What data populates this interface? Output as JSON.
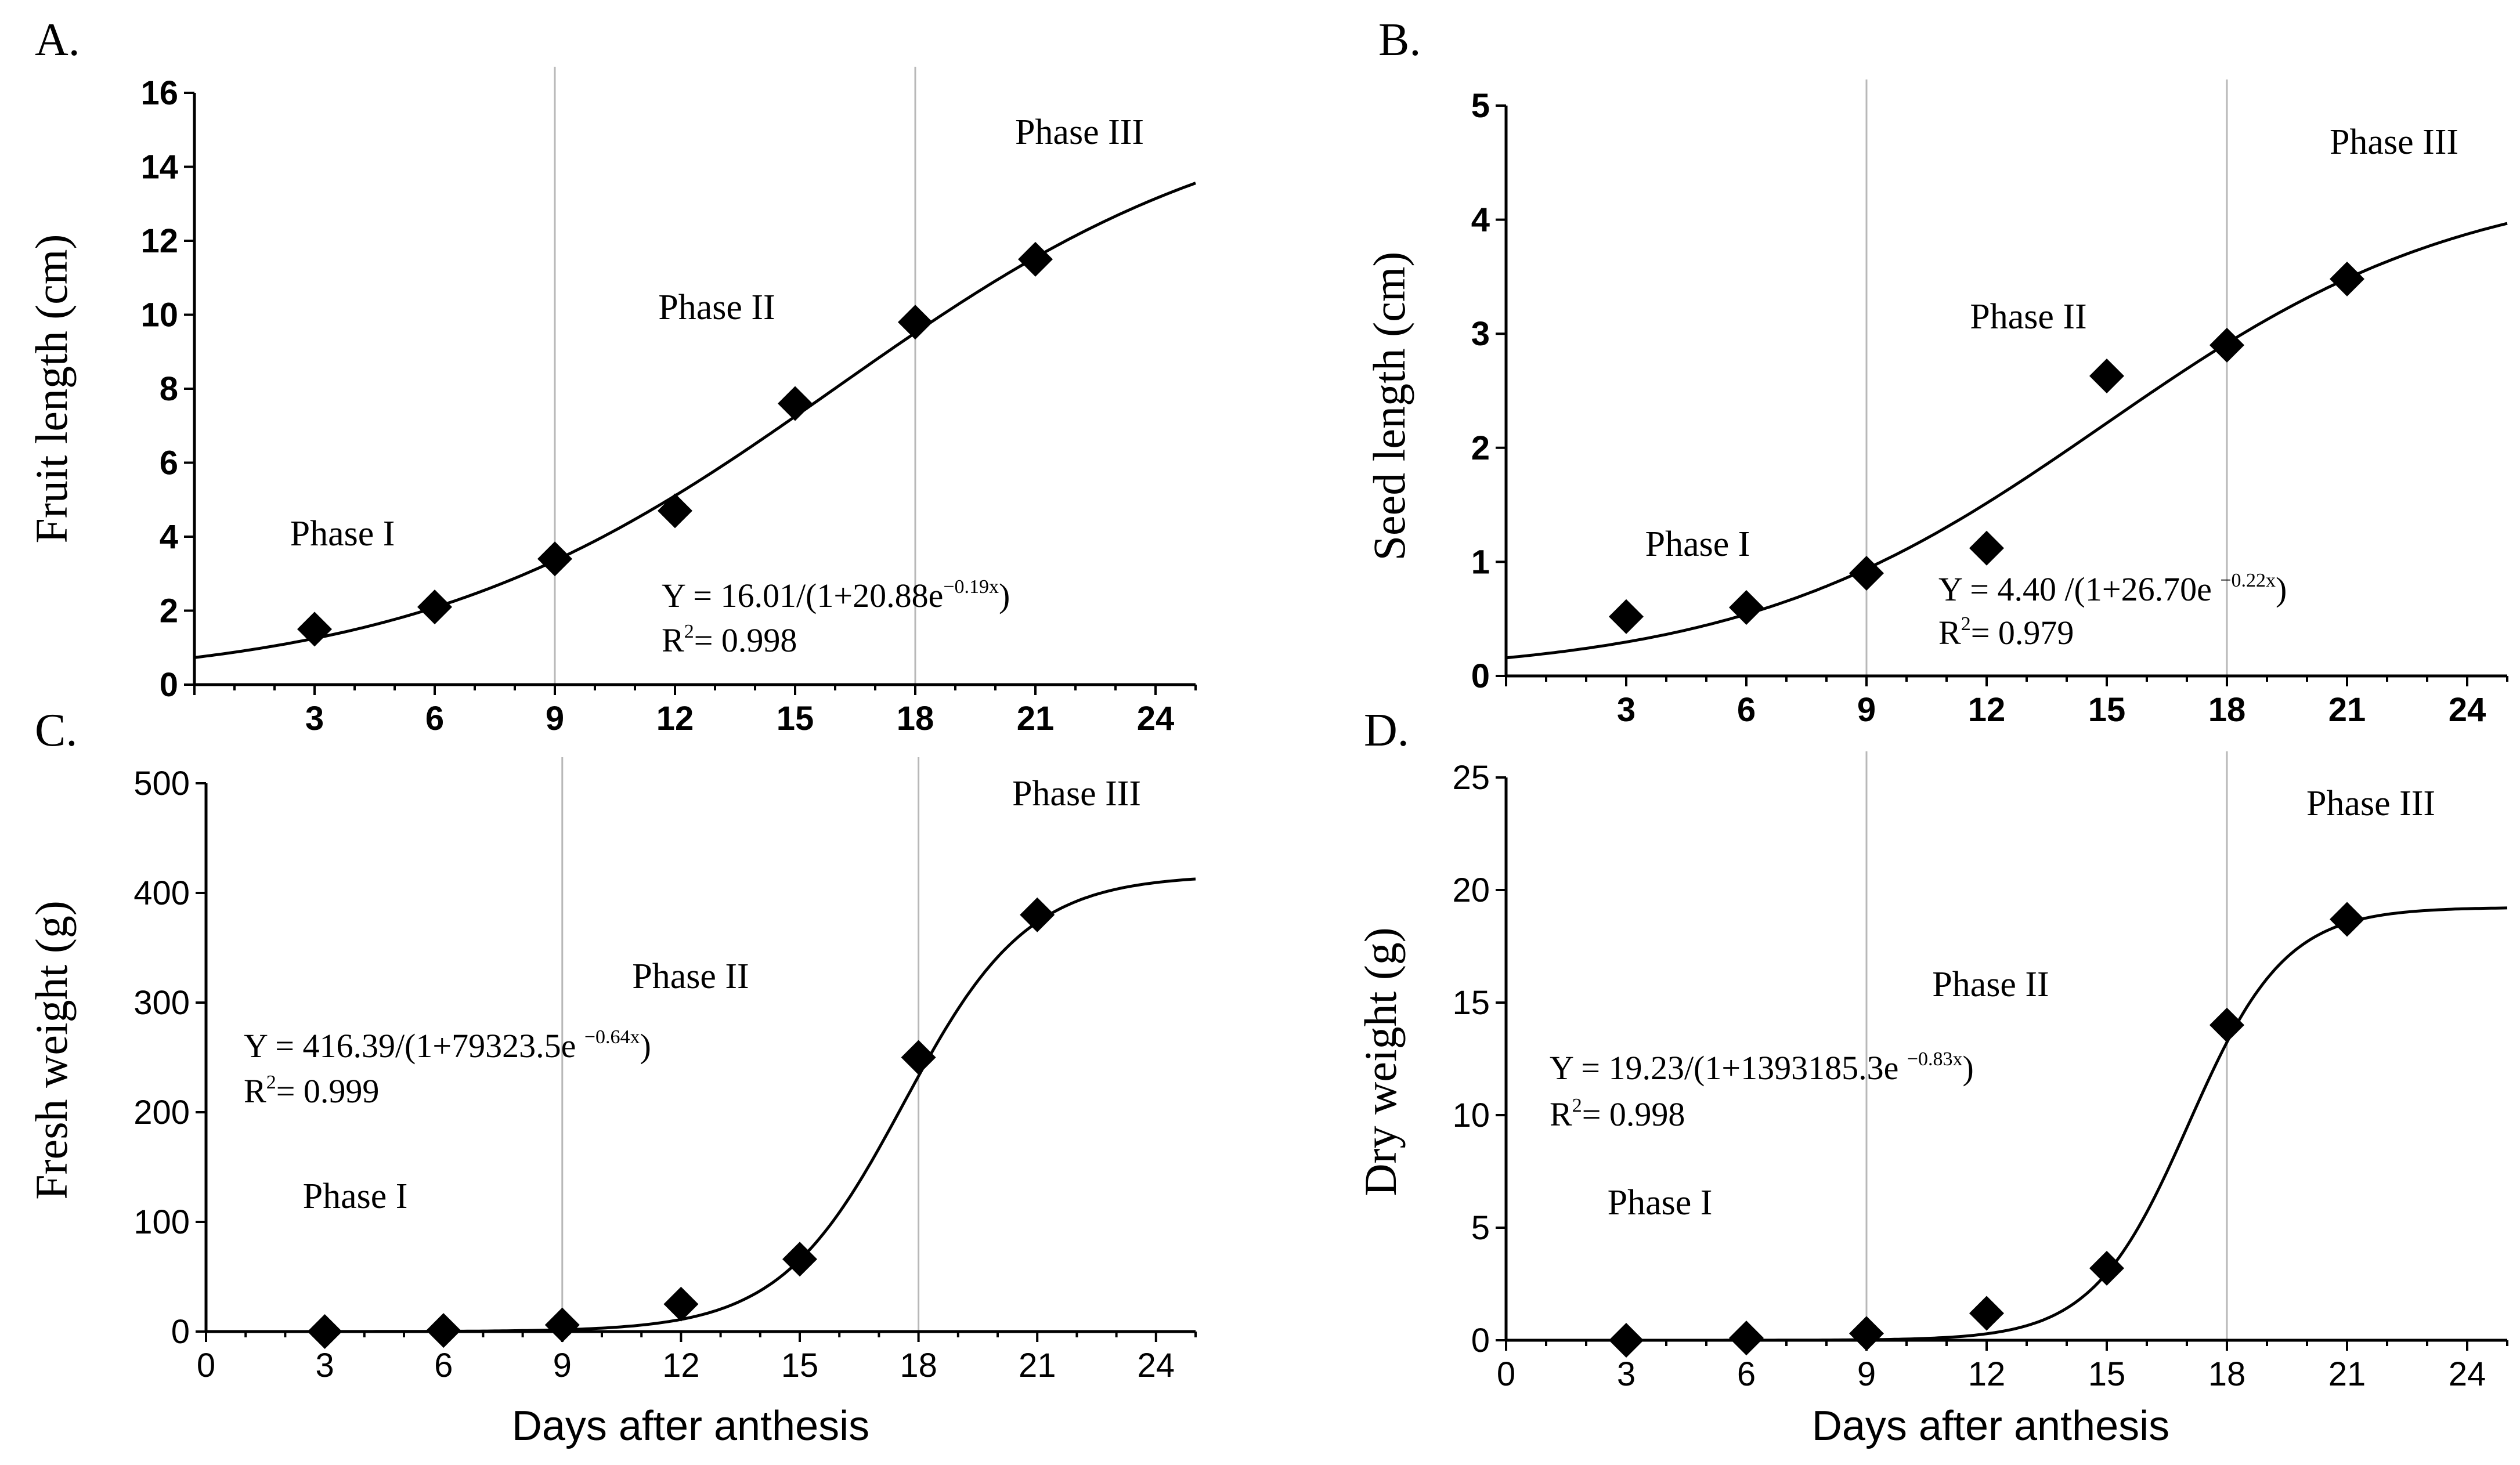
{
  "figure": {
    "x_label": "Days after anthesis",
    "phase_labels": [
      "Phase I",
      "Phase II",
      "Phase III"
    ]
  },
  "chart_data": [
    {
      "panel": "A.",
      "type": "scatter",
      "ylabel": "Fruit length (cm)",
      "xlabel": "",
      "xlim": [
        0,
        25
      ],
      "ylim": [
        0,
        16
      ],
      "yticks": [
        0,
        2,
        4,
        6,
        8,
        10,
        12,
        14,
        16
      ],
      "xticks": [
        3,
        6,
        9,
        12,
        15,
        18,
        21,
        24
      ],
      "phase_boundaries_days": [
        9,
        18
      ],
      "x": [
        3,
        6,
        9,
        12,
        15,
        18,
        21
      ],
      "values": [
        1.5,
        2.1,
        3.4,
        4.7,
        7.6,
        9.8,
        11.5
      ],
      "fit": {
        "a": 16.01,
        "b": 20.88,
        "k": 0.19
      },
      "equation": {
        "prefix": "Y = 16.01/(1+20.88e",
        "exponent": "−0.19x",
        "suffix": ")"
      },
      "r2": {
        "prefix": "R",
        "sup": "2",
        "suffix": "= 0.998"
      }
    },
    {
      "panel": "B.",
      "type": "scatter",
      "ylabel": "Seed length (cm)",
      "xlabel": "",
      "xlim": [
        0,
        25
      ],
      "ylim": [
        0,
        5
      ],
      "yticks": [
        0,
        1,
        2,
        3,
        4,
        5
      ],
      "xticks": [
        3,
        6,
        9,
        12,
        15,
        18,
        21,
        24
      ],
      "phase_boundaries_days": [
        9,
        18
      ],
      "x": [
        3,
        6,
        9,
        12,
        15,
        18,
        21
      ],
      "values": [
        0.52,
        0.6,
        0.9,
        1.12,
        2.63,
        2.9,
        3.48
      ],
      "fit": {
        "a": 4.4,
        "b": 26.7,
        "k": 0.22
      },
      "equation": {
        "prefix": "Y = 4.40 /(1+26.70e ",
        "exponent": "−0.22x",
        "suffix": ")"
      },
      "r2": {
        "prefix": "R",
        "sup": "2",
        "suffix": "= 0.979"
      }
    },
    {
      "panel": "C.",
      "type": "scatter",
      "ylabel": "Fresh weight (g)",
      "xlabel": "Days after anthesis",
      "xlim": [
        0,
        25
      ],
      "ylim": [
        0,
        500
      ],
      "yticks": [
        0,
        100,
        200,
        300,
        400,
        500
      ],
      "xticks": [
        0,
        3,
        6,
        9,
        12,
        15,
        18,
        21,
        24
      ],
      "phase_boundaries_days": [
        9,
        18
      ],
      "x": [
        3,
        6,
        9,
        12,
        15,
        18,
        21
      ],
      "values": [
        0,
        1,
        6,
        25,
        66,
        250,
        380
      ],
      "fit": {
        "a": 416.39,
        "b": 79323.5,
        "k": 0.64
      },
      "equation": {
        "prefix": "Y = 416.39/(1+79323.5e ",
        "exponent": "−0.64x",
        "suffix": ")"
      },
      "r2": {
        "prefix": "R",
        "sup": "2",
        "suffix": "= 0.999"
      }
    },
    {
      "panel": "D.",
      "type": "scatter",
      "ylabel": "Dry weight (g)",
      "xlabel": "Days after anthesis",
      "xlim": [
        0,
        25
      ],
      "ylim": [
        0,
        25
      ],
      "yticks": [
        0,
        5,
        10,
        15,
        20,
        25
      ],
      "xticks": [
        0,
        3,
        6,
        9,
        12,
        15,
        18,
        21,
        24
      ],
      "phase_boundaries_days": [
        9,
        18
      ],
      "x": [
        3,
        6,
        9,
        12,
        15,
        18,
        21
      ],
      "values": [
        0,
        0.1,
        0.3,
        1.2,
        3.2,
        14,
        18.7
      ],
      "fit": {
        "a": 19.23,
        "b": 1393185.3,
        "k": 0.83
      },
      "equation": {
        "prefix": "Y = 19.23/(1+1393185.3e ",
        "exponent": "−0.83x",
        "suffix": ")"
      },
      "r2": {
        "prefix": "R",
        "sup": "2",
        "suffix": "= 0.998"
      }
    }
  ]
}
